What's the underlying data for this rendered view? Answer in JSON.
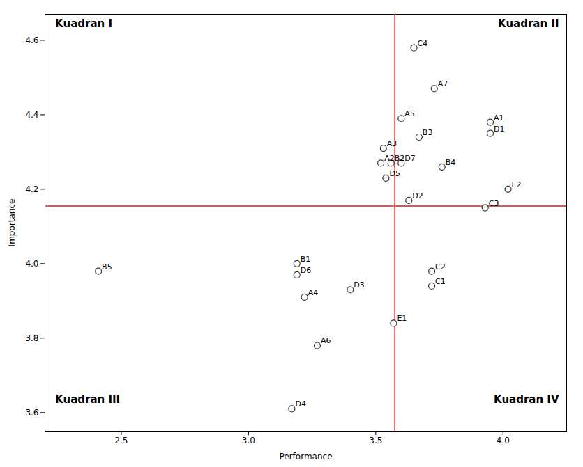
{
  "chart_data": {
    "type": "scatter",
    "xlabel": "Performance",
    "ylabel": "Importance",
    "point_labels": [
      "A1",
      "A2",
      "A3",
      "A4",
      "A5",
      "A6",
      "A7",
      "B1",
      "B2",
      "B3",
      "B4",
      "B5",
      "C1",
      "C2",
      "C3",
      "C4",
      "D1",
      "D2",
      "D3",
      "D4",
      "D5",
      "D6",
      "D7",
      "E1",
      "E2"
    ],
    "x": [
      3.95,
      3.52,
      3.53,
      3.22,
      3.6,
      3.27,
      3.73,
      3.19,
      3.56,
      3.67,
      3.76,
      2.41,
      3.72,
      3.72,
      3.93,
      3.65,
      3.95,
      3.63,
      3.4,
      3.17,
      3.54,
      3.19,
      3.6,
      3.57,
      4.02
    ],
    "values": [
      4.38,
      4.27,
      4.31,
      3.91,
      4.39,
      3.78,
      4.47,
      4.0,
      4.27,
      4.34,
      4.26,
      3.98,
      3.94,
      3.98,
      4.15,
      4.58,
      4.35,
      4.17,
      3.93,
      3.61,
      4.23,
      3.97,
      4.27,
      3.84,
      4.2
    ],
    "color": "#333333",
    "marker": "circle",
    "reference_lines": [
      {
        "x": 3.575,
        "color": "#cc2222"
      },
      {
        "y": 4.155,
        "color": "#cc2222"
      }
    ],
    "annotations": [
      {
        "text": "Kuadran I",
        "x": 2.24,
        "y": 4.655
      },
      {
        "text": "Kuadran II",
        "x": 4.22,
        "y": 4.655
      },
      {
        "text": "Kuadran III",
        "x": 2.24,
        "y": 3.625
      },
      {
        "text": "Kuadran IV",
        "x": 4.22,
        "y": 3.625
      }
    ],
    "xlim": [
      2.2,
      4.25
    ],
    "ylim": [
      3.55,
      4.67
    ],
    "xticks": [
      2.5,
      {
        "value": 3,
        "label": "3.0"
      },
      3.5,
      {
        "value": 4,
        "label": "4.0"
      }
    ],
    "yticks": [
      3.6,
      3.8,
      {
        "value": 4,
        "label": "4.0"
      },
      4.2,
      4.4,
      4.6
    ],
    "grid": false
  }
}
